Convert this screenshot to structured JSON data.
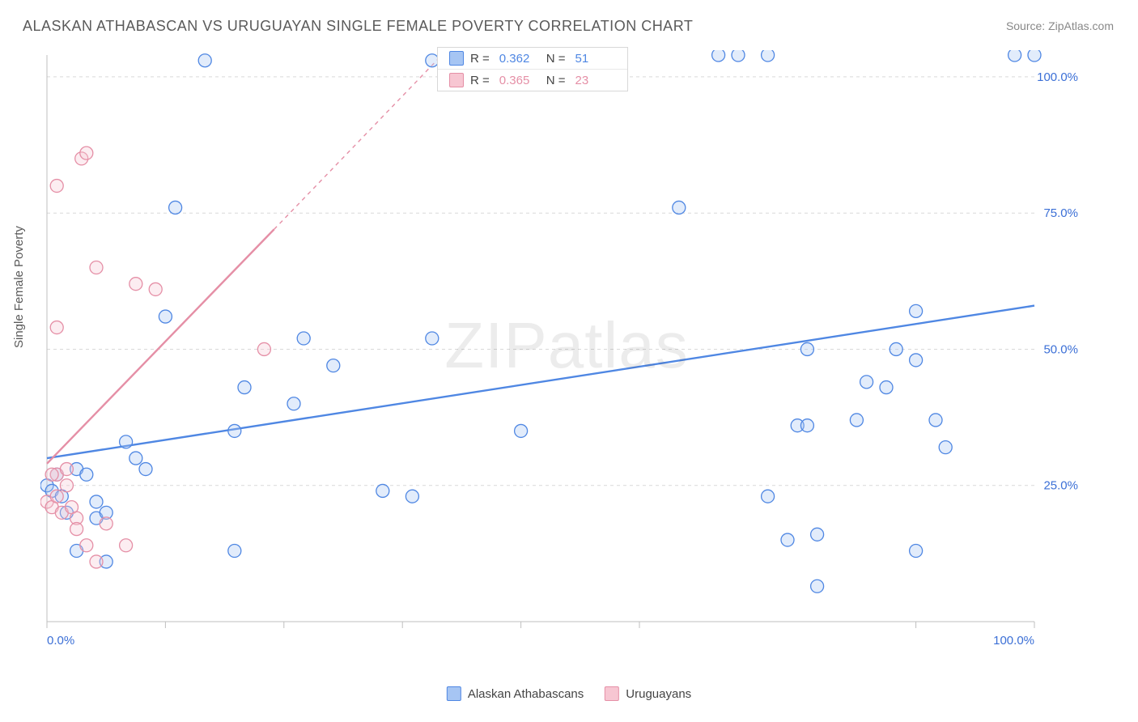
{
  "title": "ALASKAN ATHABASCAN VS URUGUAYAN SINGLE FEMALE POVERTY CORRELATION CHART",
  "source_label": "Source:",
  "source_name": "ZipAtlas.com",
  "y_axis_label": "Single Female Poverty",
  "watermark_a": "ZIP",
  "watermark_b": "atlas",
  "chart": {
    "type": "scatter",
    "xlim": [
      0,
      100
    ],
    "ylim": [
      0,
      104
    ],
    "x_ticks": [
      0,
      12,
      24,
      36,
      48,
      60,
      88,
      100
    ],
    "x_tick_labels": {
      "0": "0.0%",
      "100": "100.0%"
    },
    "y_ticks": [
      25,
      50,
      75,
      100
    ],
    "y_tick_labels": {
      "25": "25.0%",
      "50": "50.0%",
      "75": "75.0%",
      "100": "100.0%"
    },
    "grid_color": "#d9d9d9",
    "grid_dash": "4,4",
    "axis_color": "#bfbfbf",
    "background_color": "#ffffff",
    "tick_label_color": "#3b6fd6",
    "marker_radius": 8,
    "marker_stroke_width": 1.3,
    "marker_fill_opacity": 0.32,
    "trend_line_width": 2.4,
    "series": [
      {
        "name": "Alaskan Athabascans",
        "color": "#4f87e3",
        "fill": "#a6c5f3",
        "R": "0.362",
        "N": "51",
        "trend": {
          "x1": 0,
          "y1": 30,
          "x2": 100,
          "y2": 58,
          "dash": null
        },
        "points": [
          [
            0,
            25
          ],
          [
            0.5,
            24
          ],
          [
            1,
            27
          ],
          [
            1.5,
            23
          ],
          [
            2,
            20
          ],
          [
            3,
            28
          ],
          [
            4,
            27
          ],
          [
            5,
            22
          ],
          [
            5,
            19
          ],
          [
            3,
            13
          ],
          [
            6,
            20
          ],
          [
            6,
            11
          ],
          [
            8,
            33
          ],
          [
            9,
            30
          ],
          [
            10,
            28
          ],
          [
            12,
            56
          ],
          [
            13,
            76
          ],
          [
            16,
            103
          ],
          [
            19,
            35
          ],
          [
            19,
            13
          ],
          [
            20,
            43
          ],
          [
            25,
            40
          ],
          [
            26,
            52
          ],
          [
            29,
            47
          ],
          [
            34,
            24
          ],
          [
            37,
            23
          ],
          [
            39,
            52
          ],
          [
            39,
            103
          ],
          [
            48,
            35
          ],
          [
            64,
            76
          ],
          [
            68,
            104
          ],
          [
            70,
            104
          ],
          [
            73,
            104
          ],
          [
            73,
            23
          ],
          [
            75,
            15
          ],
          [
            76,
            36
          ],
          [
            77,
            36
          ],
          [
            77,
            50
          ],
          [
            78,
            16
          ],
          [
            78,
            6.5
          ],
          [
            82,
            37
          ],
          [
            83,
            44
          ],
          [
            86,
            50
          ],
          [
            85,
            43
          ],
          [
            88,
            48
          ],
          [
            88,
            57
          ],
          [
            90,
            37
          ],
          [
            88,
            13
          ],
          [
            91,
            32
          ],
          [
            98,
            104
          ],
          [
            100,
            104
          ]
        ]
      },
      {
        "name": "Uruguayans",
        "color": "#e58fa6",
        "fill": "#f7c6d2",
        "R": "0.365",
        "N": "23",
        "trend": {
          "x1": 0,
          "y1": 29,
          "x2": 23,
          "y2": 72,
          "dash": null
        },
        "trend_dashed": {
          "x1": 23,
          "y1": 72,
          "x2": 40,
          "y2": 104,
          "dash": "5,5"
        },
        "points": [
          [
            0,
            22
          ],
          [
            0.5,
            21
          ],
          [
            1,
            23
          ],
          [
            1,
            27
          ],
          [
            1.5,
            20
          ],
          [
            2,
            25
          ],
          [
            2,
            28
          ],
          [
            2.5,
            21
          ],
          [
            3,
            19
          ],
          [
            3,
            17
          ],
          [
            3.5,
            85
          ],
          [
            4,
            86
          ],
          [
            1,
            80
          ],
          [
            1,
            54
          ],
          [
            5,
            65
          ],
          [
            4,
            14
          ],
          [
            5,
            11
          ],
          [
            6,
            18
          ],
          [
            8,
            14
          ],
          [
            9,
            62
          ],
          [
            11,
            61
          ],
          [
            22,
            50
          ],
          [
            0.5,
            27
          ]
        ]
      }
    ]
  },
  "legend_bottom": [
    {
      "label": "Alaskan Athabascans",
      "color": "#4f87e3",
      "fill": "#a6c5f3"
    },
    {
      "label": "Uruguayans",
      "color": "#e58fa6",
      "fill": "#f7c6d2"
    }
  ]
}
